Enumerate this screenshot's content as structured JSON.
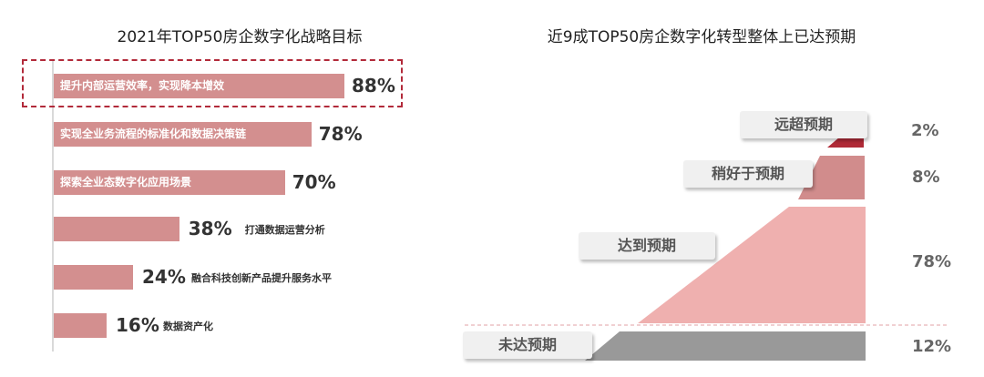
{
  "chart_data": [
    {
      "type": "bar",
      "orientation": "horizontal",
      "title": "2021年TOP50房企数字化战略目标",
      "categories": [
        "提升内部运营效率，实现降本增效",
        "实现全业务流程的标准化和数据决策链",
        "探索全业态数字化应用场景",
        "打通数据运营分析",
        "融合科技创新产品提升服务水平",
        "数据资产化"
      ],
      "values": [
        88,
        78,
        70,
        38,
        24,
        16
      ],
      "value_labels": [
        "88%",
        "78%",
        "70%",
        "38%",
        "24%",
        "16%"
      ],
      "highlighted": "提升内部运营效率，实现降本增效",
      "color": "#d38f8f",
      "highlight_color": "#b22a3a"
    },
    {
      "type": "area",
      "title": "近9成TOP50房企数字化转型整体上已达预期",
      "categories": [
        "远超预期",
        "稍好于预期",
        "达到预期",
        "未达预期"
      ],
      "values": [
        2,
        8,
        78,
        12
      ],
      "value_labels": [
        "2%",
        "8%",
        "78%",
        "12%"
      ],
      "colors": [
        "#b02a37",
        "#d18c8c",
        "#efb0af",
        "#999999"
      ]
    }
  ]
}
